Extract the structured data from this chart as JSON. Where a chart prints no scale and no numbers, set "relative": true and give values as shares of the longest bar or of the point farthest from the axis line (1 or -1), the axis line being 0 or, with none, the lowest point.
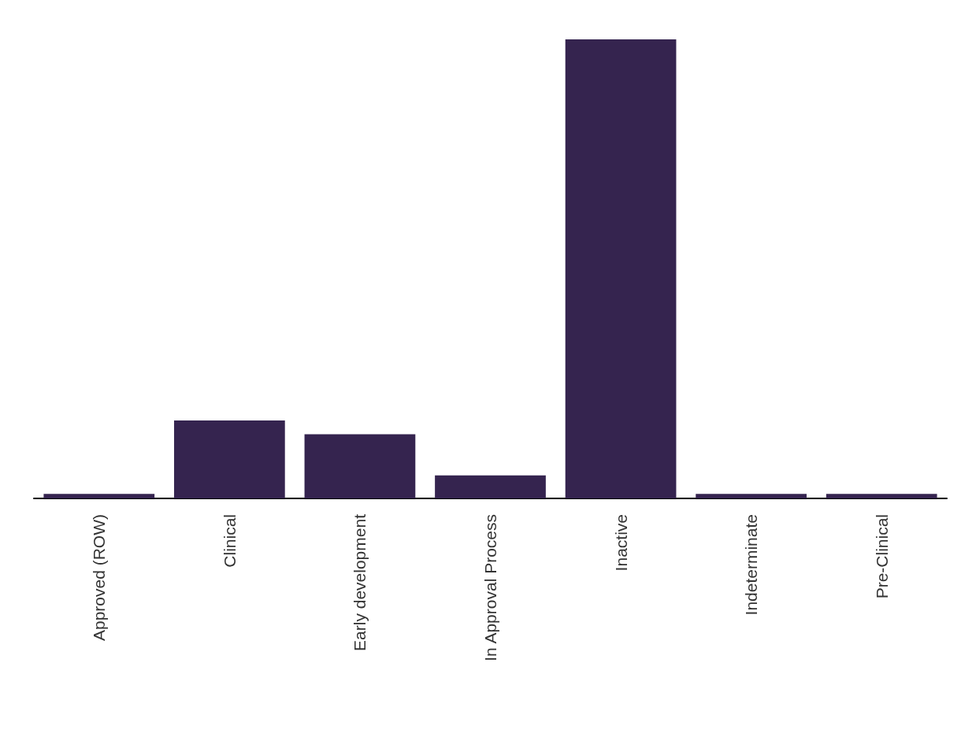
{
  "chart_data": {
    "type": "bar",
    "relative": true,
    "categories": [
      "Approved (ROW)",
      "Clinical",
      "Early development",
      "In Approval Process",
      "Inactive",
      "Indeterminate",
      "Pre-Clinical"
    ],
    "values": [
      0.01,
      0.17,
      0.14,
      0.05,
      1,
      0.01,
      0.01
    ],
    "color": "#35244f",
    "grid": false
  }
}
